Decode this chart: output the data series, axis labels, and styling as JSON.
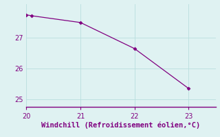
{
  "line_color": "#800080",
  "marker_color": "#800080",
  "bg_color": "#dff2f2",
  "grid_color": "#b8dede",
  "axis_color": "#800080",
  "tick_color": "#800080",
  "xlabel": "Windchill (Refroidissement éolien,°C)",
  "xlim": [
    20,
    23.5
  ],
  "ylim": [
    24.75,
    28.1
  ],
  "xticks": [
    20,
    21,
    22,
    23
  ],
  "yticks": [
    25,
    26,
    27
  ],
  "xlabel_fontsize": 7.5,
  "tick_fontsize": 7,
  "data_x": [
    20,
    20.1,
    21,
    22,
    23
  ],
  "data_y": [
    27.75,
    27.72,
    27.5,
    26.65,
    25.35
  ]
}
